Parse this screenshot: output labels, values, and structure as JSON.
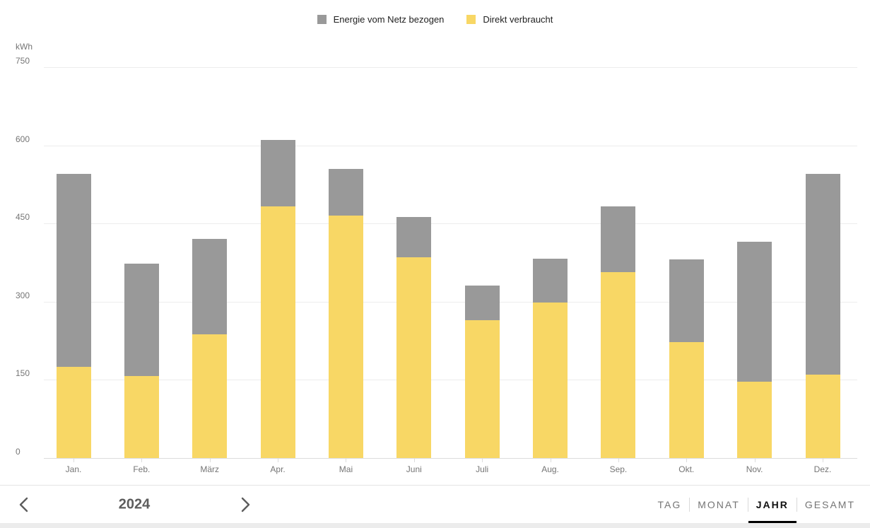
{
  "legend": {
    "items": [
      {
        "label": "Energie vom Netz bezogen",
        "color": "#999999",
        "icon": "gray-square-swatch"
      },
      {
        "label": "Direkt verbraucht",
        "color": "#F8D765",
        "icon": "yellow-square-swatch"
      }
    ]
  },
  "chart_data": {
    "type": "bar",
    "stacked": true,
    "title": "",
    "xlabel": "",
    "ylabel": "kWh",
    "unit": "kWh",
    "ylim": [
      0,
      750
    ],
    "yticks": [
      0,
      150,
      300,
      450,
      600,
      750
    ],
    "grid": true,
    "legend_position": "top",
    "categories": [
      "Jan.",
      "Feb.",
      "März",
      "Apr.",
      "Mai",
      "Juni",
      "Juli",
      "Aug.",
      "Sep.",
      "Okt.",
      "Nov.",
      "Dez."
    ],
    "series": [
      {
        "name": "Direkt verbraucht",
        "color": "#F8D765",
        "values": [
          175,
          157,
          238,
          483,
          465,
          385,
          265,
          298,
          357,
          222,
          146,
          160
        ]
      },
      {
        "name": "Energie vom Netz bezogen",
        "color": "#999999",
        "values": [
          370,
          216,
          182,
          127,
          90,
          77,
          66,
          85,
          126,
          159,
          269,
          385
        ]
      }
    ]
  },
  "footer": {
    "year": "2024",
    "prev_icon": "chevron-left-icon",
    "next_icon": "chevron-right-icon",
    "active_tab": "JAHR",
    "tabs": [
      {
        "label": "TAG",
        "active": false
      },
      {
        "label": "MONAT",
        "active": false
      },
      {
        "label": "JAHR",
        "active": true
      },
      {
        "label": "GESAMT",
        "active": false
      }
    ]
  }
}
